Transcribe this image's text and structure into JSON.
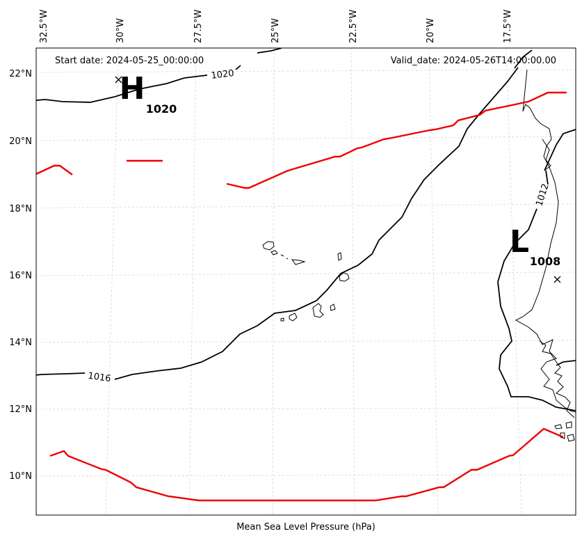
{
  "map": {
    "caption": "Mean Sea Level Pressure (hPa)",
    "start_date": "Start date: 2024-05-25_00:00:00",
    "valid_date": "Valid_date: 2024-05-26T14:00:00.00",
    "longitude_labels": [
      "32.5°W",
      "30°W",
      "27.5°W",
      "25°W",
      "22.5°W",
      "20°W",
      "17.5°W"
    ],
    "latitude_labels": [
      "22°N",
      "20°N",
      "18°N",
      "16°N",
      "14°N",
      "12°N",
      "10°N"
    ],
    "isobar_labels": [
      "1020",
      "1016",
      "1012"
    ],
    "pressure_centers": [
      {
        "letter": "H",
        "value": "1020"
      },
      {
        "letter": "L",
        "value": "1008"
      }
    ],
    "colors": {
      "isobar": "#000000",
      "red_line": "#ee0000",
      "grid": "#cccccc",
      "frame": "#000000"
    }
  }
}
